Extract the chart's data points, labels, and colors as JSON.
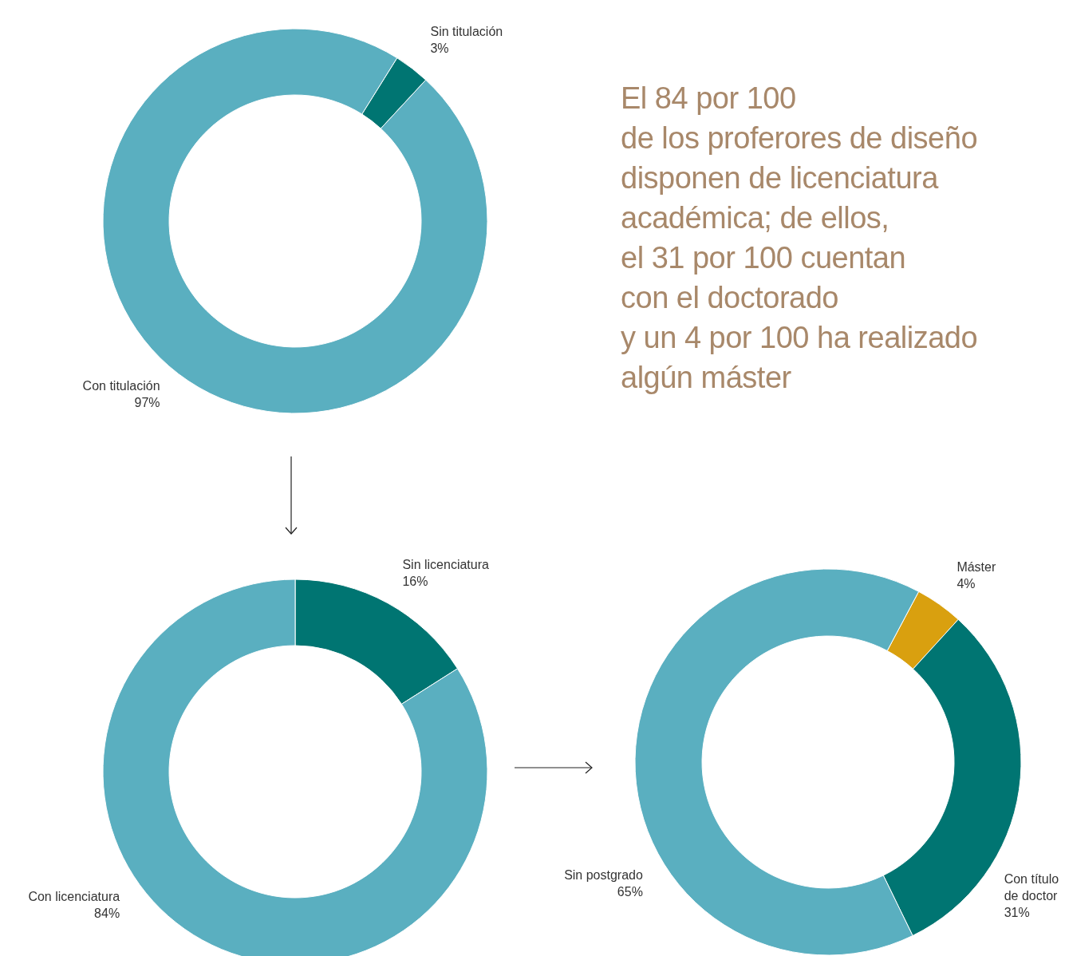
{
  "chart_data": [
    {
      "type": "donut",
      "categories": [
        "Sin titulación",
        "Con titulación"
      ],
      "values": [
        3,
        97
      ],
      "colors": [
        "#007572",
        "#5aafc0"
      ],
      "value_labels": [
        "3%",
        "97%"
      ]
    },
    {
      "type": "donut",
      "categories": [
        "Sin licenciatura",
        "Con licenciatura"
      ],
      "values": [
        16,
        84
      ],
      "colors": [
        "#007572",
        "#5aafc0"
      ],
      "value_labels": [
        "16%",
        "84%"
      ]
    },
    {
      "type": "donut",
      "categories": [
        "Máster",
        "Con título de doctor",
        "Sin postgrado"
      ],
      "values": [
        4,
        31,
        65
      ],
      "colors": [
        "#d9a00f",
        "#007572",
        "#5aafc0"
      ],
      "value_labels": [
        "4%",
        "31%",
        "65%"
      ]
    },
    {
      "type": "other",
      "annotations": [
        "El 84 por 100",
        "de los proferores de diseño",
        "disponen de licenciatura",
        "académica; de ellos,",
        "el 31 por 100 cuentan",
        "con el doctorado",
        "y un 4 por 100 ha realizado",
        "algún máster"
      ]
    }
  ]
}
